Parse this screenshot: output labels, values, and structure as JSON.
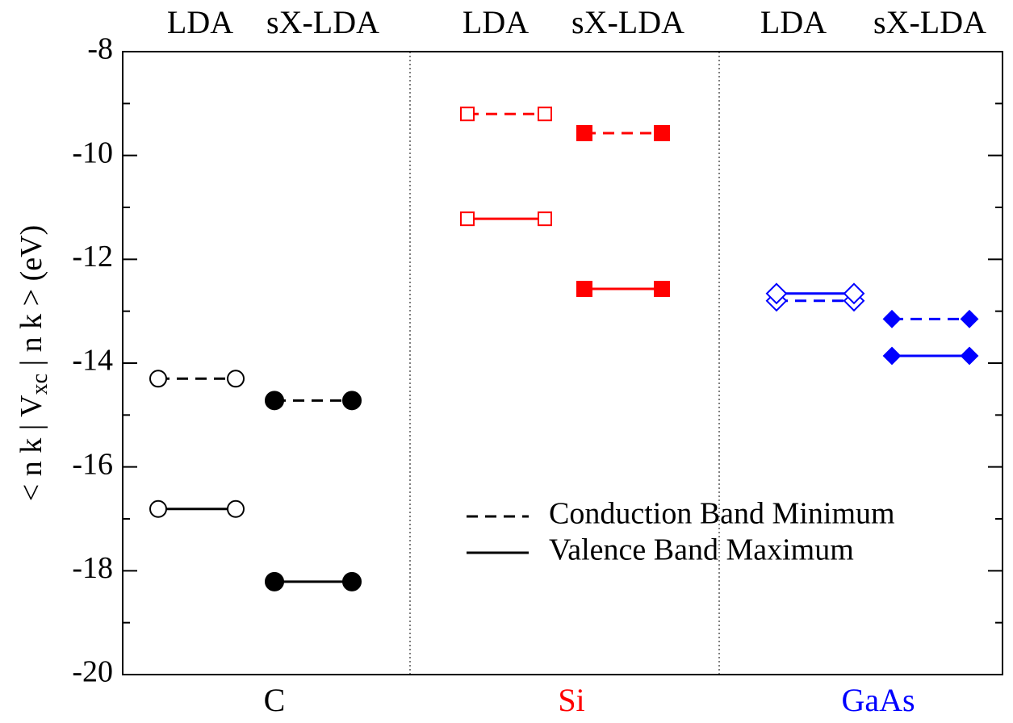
{
  "chart_data": {
    "type": "level",
    "ylabel_parts": [
      "< n k | V",
      "xc",
      " | n k > (eV)"
    ],
    "categories": [
      "LDA",
      "sX-LDA",
      "LDA",
      "sX-LDA",
      "LDA",
      "sX-LDA"
    ],
    "filled": [
      false,
      true,
      false,
      true,
      false,
      true
    ],
    "groups": [
      {
        "name": "C",
        "color": "#000000",
        "marker": "circle"
      },
      {
        "name": "Si",
        "color": "#ff0000",
        "marker": "square"
      },
      {
        "name": "GaAs",
        "color": "#0000ff",
        "marker": "diamond"
      }
    ],
    "series": [
      {
        "name": "Conduction Band Minimum",
        "dash": "dashed",
        "values": [
          -14.3,
          -14.72,
          -9.2,
          -9.57,
          -12.8,
          -13.15
        ]
      },
      {
        "name": "Valence Band Maximum",
        "dash": "solid",
        "values": [
          -16.81,
          -18.21,
          -11.22,
          -12.57,
          -12.66,
          -13.86
        ]
      }
    ],
    "ylim": [
      -20,
      -8
    ],
    "yticks": [
      -20,
      -18,
      -16,
      -14,
      -12,
      -10,
      -8
    ],
    "yminorticks": [
      -19,
      -17,
      -15,
      -13,
      -11,
      -9
    ]
  }
}
